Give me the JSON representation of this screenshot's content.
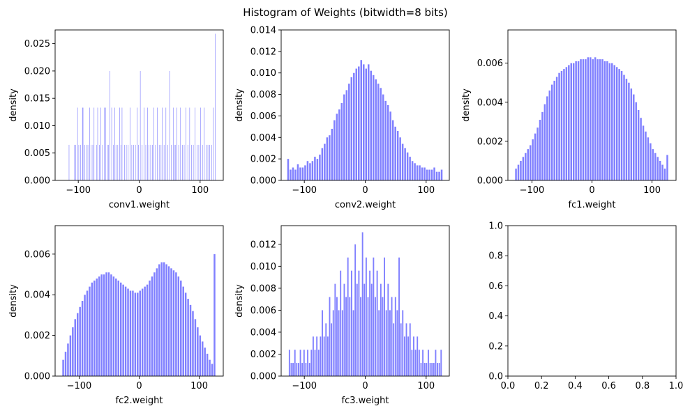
{
  "figure": {
    "suptitle": "Histogram of Weights (bitwidth=8 bits)",
    "bar_color": "#8080ff"
  },
  "chart_data": [
    {
      "type": "bar",
      "subtitle": "",
      "xlabel": "conv1.weight",
      "ylabel": "density",
      "xlim": [
        -138,
        138
      ],
      "ylim": [
        0,
        0.0275
      ],
      "xticks": [
        -100,
        0,
        100
      ],
      "xtick_labels": [
        "−100",
        "0",
        "100"
      ],
      "yticks": [
        0,
        0.005,
        0.01,
        0.015,
        0.02,
        0.025
      ],
      "ytick_labels": [
        "0.000",
        "0.005",
        "0.010",
        "0.015",
        "0.020",
        "0.025"
      ],
      "grid": false,
      "bin_width": 1,
      "x": [
        -115,
        -106,
        -104,
        -101,
        -99,
        -96,
        -93,
        -92,
        -89,
        -86,
        -84,
        -81,
        -79,
        -76,
        -74,
        -70,
        -68,
        -65,
        -63,
        -60,
        -57,
        -55,
        -52,
        -50,
        -48,
        -45,
        -42,
        -40,
        -38,
        -35,
        -32,
        -30,
        -28,
        -24,
        -21,
        -18,
        -15,
        -12,
        -9,
        -6,
        -3,
        -1,
        2,
        5,
        8,
        11,
        14,
        16,
        19,
        22,
        24,
        27,
        30,
        33,
        36,
        38,
        41,
        44,
        47,
        50,
        53,
        56,
        58,
        60,
        62,
        65,
        68,
        71,
        74,
        77,
        80,
        83,
        86,
        89,
        92,
        95,
        98,
        101,
        104,
        107,
        110,
        113,
        116,
        119,
        122,
        125
      ],
      "values": [
        0.0065,
        0.0065,
        0.0065,
        0.0133,
        0.0065,
        0.0065,
        0.0133,
        0.0133,
        0.0065,
        0.0065,
        0.0065,
        0.0133,
        0.0065,
        0.0065,
        0.0133,
        0.0065,
        0.0133,
        0.0065,
        0.0133,
        0.0065,
        0.0133,
        0.0133,
        0.0065,
        0.0065,
        0.02,
        0.0133,
        0.0065,
        0.0133,
        0.0065,
        0.0065,
        0.0133,
        0.0065,
        0.0133,
        0.0065,
        0.0065,
        0.0065,
        0.0133,
        0.0065,
        0.0065,
        0.0065,
        0.0133,
        0.0065,
        0.02,
        0.0065,
        0.0133,
        0.0065,
        0.0133,
        0.0065,
        0.0065,
        0.0065,
        0.0133,
        0.0065,
        0.0133,
        0.0065,
        0.0065,
        0.0133,
        0.0065,
        0.0133,
        0.0065,
        0.02,
        0.0065,
        0.0133,
        0.0065,
        0.0065,
        0.0133,
        0.0065,
        0.0133,
        0.0065,
        0.0065,
        0.0133,
        0.0065,
        0.0133,
        0.0065,
        0.0065,
        0.0133,
        0.0065,
        0.0065,
        0.0133,
        0.0065,
        0.0133,
        0.0065,
        0.0065,
        0.0065,
        0.0065,
        0.0133,
        0.0268
      ]
    },
    {
      "type": "bar",
      "subtitle": "",
      "xlabel": "conv2.weight",
      "ylabel": "density",
      "xlim": [
        -138,
        138
      ],
      "ylim": [
        0,
        0.014
      ],
      "xticks": [
        -100,
        0,
        100
      ],
      "xtick_labels": [
        "−100",
        "0",
        "100"
      ],
      "yticks": [
        0,
        0.002,
        0.004,
        0.006,
        0.008,
        0.01,
        0.012,
        0.014
      ],
      "ytick_labels": [
        "0.000",
        "0.002",
        "0.004",
        "0.006",
        "0.008",
        "0.010",
        "0.012",
        "0.014"
      ],
      "grid": false,
      "bin_width": 4,
      "x": [
        -126,
        -122,
        -118,
        -114,
        -110,
        -106,
        -102,
        -98,
        -94,
        -90,
        -86,
        -82,
        -78,
        -74,
        -70,
        -66,
        -62,
        -58,
        -54,
        -50,
        -46,
        -42,
        -38,
        -34,
        -30,
        -26,
        -22,
        -18,
        -14,
        -10,
        -6,
        -2,
        2,
        6,
        10,
        14,
        18,
        22,
        26,
        30,
        34,
        38,
        42,
        46,
        50,
        54,
        58,
        62,
        66,
        70,
        74,
        78,
        82,
        86,
        90,
        94,
        98,
        102,
        106,
        110,
        114,
        118,
        122,
        126
      ],
      "values": [
        0.002,
        0.001,
        0.0012,
        0.001,
        0.0015,
        0.0012,
        0.0012,
        0.0014,
        0.0018,
        0.0016,
        0.0018,
        0.0022,
        0.002,
        0.0024,
        0.003,
        0.0034,
        0.004,
        0.0042,
        0.0048,
        0.0056,
        0.0062,
        0.0066,
        0.0072,
        0.008,
        0.0084,
        0.009,
        0.0096,
        0.01,
        0.0104,
        0.0106,
        0.0112,
        0.0108,
        0.0104,
        0.0108,
        0.0102,
        0.0098,
        0.0094,
        0.009,
        0.0086,
        0.008,
        0.0074,
        0.007,
        0.0064,
        0.0056,
        0.005,
        0.0046,
        0.004,
        0.0034,
        0.003,
        0.0026,
        0.0022,
        0.0018,
        0.0016,
        0.0014,
        0.0014,
        0.0012,
        0.0012,
        0.001,
        0.001,
        0.001,
        0.0012,
        0.0008,
        0.0008,
        0.001
      ]
    },
    {
      "type": "bar",
      "subtitle": "",
      "xlabel": "fc1.weight",
      "ylabel": "density",
      "xlim": [
        -140,
        140
      ],
      "ylim": [
        0,
        0.0077
      ],
      "xticks": [
        -100,
        0,
        100
      ],
      "xtick_labels": [
        "−100",
        "0",
        "100"
      ],
      "yticks": [
        0,
        0.002,
        0.004,
        0.006
      ],
      "ytick_labels": [
        "0.000",
        "0.002",
        "0.004",
        "0.006"
      ],
      "grid": false,
      "bin_width": 4,
      "x": [
        -126,
        -122,
        -118,
        -114,
        -110,
        -106,
        -102,
        -98,
        -94,
        -90,
        -86,
        -82,
        -78,
        -74,
        -70,
        -66,
        -62,
        -58,
        -54,
        -50,
        -46,
        -42,
        -38,
        -34,
        -30,
        -26,
        -22,
        -18,
        -14,
        -10,
        -6,
        -2,
        2,
        6,
        10,
        14,
        18,
        22,
        26,
        30,
        34,
        38,
        42,
        46,
        50,
        54,
        58,
        62,
        66,
        70,
        74,
        78,
        82,
        86,
        90,
        94,
        98,
        102,
        106,
        110,
        114,
        118,
        122,
        126
      ],
      "values": [
        0.0006,
        0.0008,
        0.001,
        0.0012,
        0.0014,
        0.0016,
        0.0018,
        0.0021,
        0.0024,
        0.0027,
        0.0031,
        0.0035,
        0.0039,
        0.0043,
        0.0046,
        0.0049,
        0.0051,
        0.0053,
        0.0055,
        0.0056,
        0.0057,
        0.0058,
        0.0059,
        0.006,
        0.006,
        0.0061,
        0.0061,
        0.0062,
        0.0062,
        0.0062,
        0.0063,
        0.0063,
        0.0062,
        0.0063,
        0.0062,
        0.0062,
        0.0062,
        0.0061,
        0.0061,
        0.006,
        0.006,
        0.0059,
        0.0058,
        0.0057,
        0.0056,
        0.0054,
        0.0052,
        0.005,
        0.0047,
        0.0044,
        0.004,
        0.0036,
        0.0032,
        0.0028,
        0.0025,
        0.0022,
        0.0019,
        0.0016,
        0.0014,
        0.0012,
        0.001,
        0.0008,
        0.0006,
        0.0013
      ]
    },
    {
      "type": "bar",
      "subtitle": "",
      "xlabel": "fc2.weight",
      "ylabel": "density",
      "xlim": [
        -140,
        140
      ],
      "ylim": [
        0,
        0.0074
      ],
      "xticks": [
        -100,
        0,
        100
      ],
      "xtick_labels": [
        "−100",
        "0",
        "100"
      ],
      "yticks": [
        0,
        0.002,
        0.004,
        0.006
      ],
      "ytick_labels": [
        "0.000",
        "0.002",
        "0.004",
        "0.006"
      ],
      "grid": false,
      "bin_width": 4,
      "x": [
        -126,
        -122,
        -118,
        -114,
        -110,
        -106,
        -102,
        -98,
        -94,
        -90,
        -86,
        -82,
        -78,
        -74,
        -70,
        -66,
        -62,
        -58,
        -54,
        -50,
        -46,
        -42,
        -38,
        -34,
        -30,
        -26,
        -22,
        -18,
        -14,
        -10,
        -6,
        -2,
        2,
        6,
        10,
        14,
        18,
        22,
        26,
        30,
        34,
        38,
        42,
        46,
        50,
        54,
        58,
        62,
        66,
        70,
        74,
        78,
        82,
        86,
        90,
        94,
        98,
        102,
        106,
        110,
        114,
        118,
        122,
        126
      ],
      "values": [
        0.0008,
        0.0012,
        0.0016,
        0.002,
        0.0024,
        0.0028,
        0.0031,
        0.0034,
        0.0037,
        0.004,
        0.0042,
        0.0044,
        0.0046,
        0.0047,
        0.0048,
        0.0049,
        0.005,
        0.005,
        0.0051,
        0.0051,
        0.005,
        0.0049,
        0.0048,
        0.0047,
        0.0046,
        0.0045,
        0.0044,
        0.0043,
        0.0042,
        0.0042,
        0.0041,
        0.0041,
        0.0042,
        0.0043,
        0.0044,
        0.0045,
        0.0047,
        0.0049,
        0.0051,
        0.0053,
        0.0055,
        0.0056,
        0.0056,
        0.0055,
        0.0054,
        0.0053,
        0.0052,
        0.0051,
        0.0049,
        0.0047,
        0.0044,
        0.0041,
        0.0038,
        0.0035,
        0.0032,
        0.0028,
        0.0024,
        0.002,
        0.0017,
        0.0014,
        0.0011,
        0.0008,
        0.0006,
        0.006
      ]
    },
    {
      "type": "bar",
      "subtitle": "",
      "xlabel": "fc3.weight",
      "ylabel": "density",
      "xlim": [
        -138,
        138
      ],
      "ylim": [
        0,
        0.0137
      ],
      "xticks": [
        -100,
        0,
        100
      ],
      "xtick_labels": [
        "−100",
        "0",
        "100"
      ],
      "yticks": [
        0,
        0.002,
        0.004,
        0.006,
        0.008,
        0.01,
        0.012
      ],
      "ytick_labels": [
        "0.000",
        "0.002",
        "0.004",
        "0.006",
        "0.008",
        "0.010",
        "0.012"
      ],
      "grid": false,
      "bin_width": 3,
      "x": [
        -124,
        -121,
        -118,
        -115,
        -112,
        -109,
        -106,
        -103,
        -100,
        -97,
        -94,
        -91,
        -88,
        -85,
        -82,
        -79,
        -76,
        -73,
        -70,
        -67,
        -64,
        -61,
        -58,
        -55,
        -52,
        -49,
        -46,
        -43,
        -40,
        -37,
        -34,
        -31,
        -28,
        -25,
        -22,
        -19,
        -16,
        -13,
        -10,
        -7,
        -4,
        -1,
        2,
        5,
        8,
        11,
        14,
        17,
        20,
        23,
        26,
        29,
        32,
        35,
        38,
        41,
        44,
        47,
        50,
        53,
        56,
        59,
        62,
        65,
        68,
        71,
        74,
        77,
        80,
        83,
        86,
        89,
        92,
        95,
        98,
        101,
        104,
        107,
        110,
        113,
        116,
        119,
        122,
        125
      ],
      "values": [
        0.0024,
        0.0012,
        0.0012,
        0.0024,
        0.0012,
        0.0012,
        0.0024,
        0.0012,
        0.0024,
        0.0012,
        0.0024,
        0.0012,
        0.0024,
        0.0036,
        0.0024,
        0.0036,
        0.0024,
        0.0036,
        0.006,
        0.0036,
        0.0048,
        0.0036,
        0.0072,
        0.0048,
        0.006,
        0.0084,
        0.0072,
        0.006,
        0.0096,
        0.006,
        0.0084,
        0.0072,
        0.0108,
        0.0072,
        0.0096,
        0.006,
        0.012,
        0.0084,
        0.0096,
        0.0072,
        0.0131,
        0.0084,
        0.0108,
        0.0072,
        0.0096,
        0.0084,
        0.0108,
        0.0072,
        0.0096,
        0.006,
        0.0084,
        0.0072,
        0.0108,
        0.006,
        0.0084,
        0.006,
        0.0072,
        0.0048,
        0.0072,
        0.006,
        0.0108,
        0.0048,
        0.006,
        0.0036,
        0.0048,
        0.0036,
        0.0048,
        0.0024,
        0.0036,
        0.0024,
        0.0036,
        0.0024,
        0.0012,
        0.0024,
        0.0012,
        0.0012,
        0.0024,
        0.0012,
        0.0012,
        0.0012,
        0.0024,
        0.0012,
        0.0012,
        0.0024
      ]
    },
    {
      "type": "empty",
      "subtitle": "",
      "xlabel": "",
      "ylabel": "",
      "xlim": [
        0,
        1
      ],
      "ylim": [
        0,
        1
      ],
      "xticks": [
        0,
        0.2,
        0.4,
        0.6,
        0.8,
        1
      ],
      "xtick_labels": [
        "0.0",
        "0.2",
        "0.4",
        "0.6",
        "0.8",
        "1.0"
      ],
      "yticks": [
        0,
        0.2,
        0.4,
        0.6,
        0.8,
        1
      ],
      "ytick_labels": [
        "0.0",
        "0.2",
        "0.4",
        "0.6",
        "0.8",
        "1.0"
      ],
      "grid": false,
      "bin_width": 0,
      "x": [],
      "values": []
    }
  ]
}
